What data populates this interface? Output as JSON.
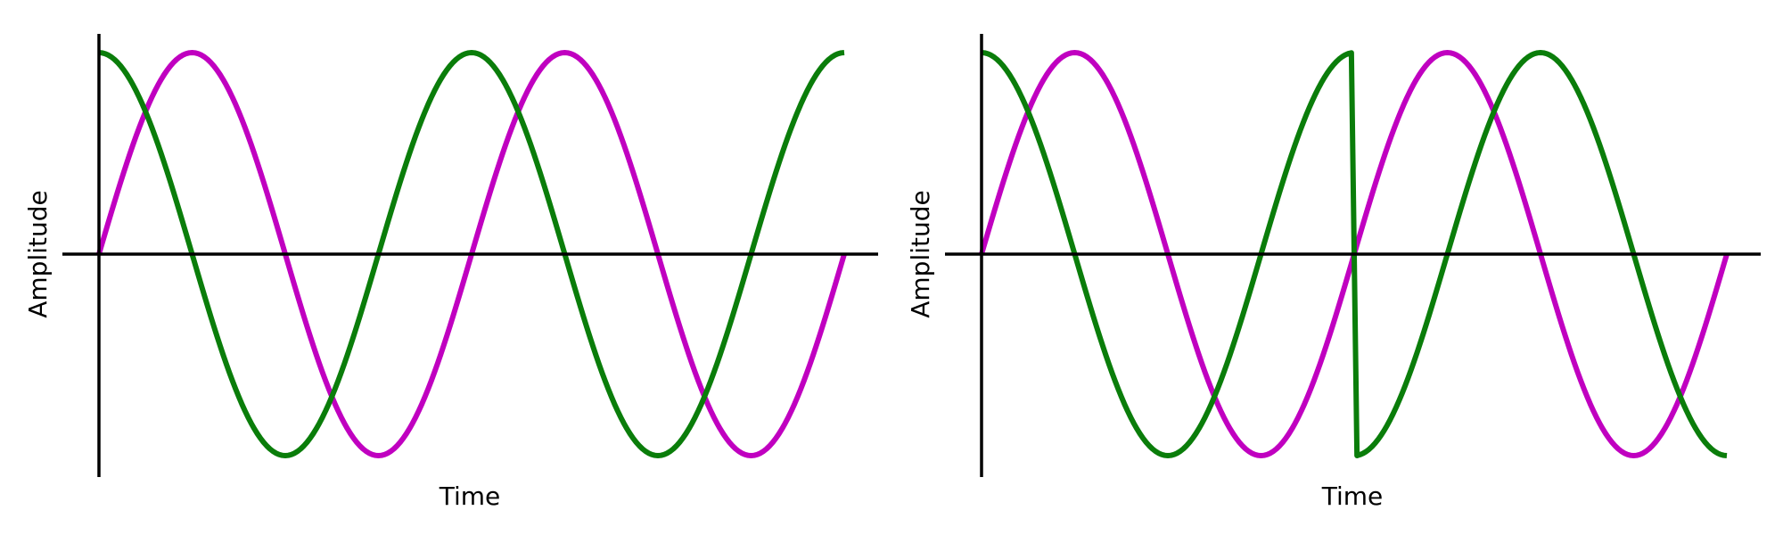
{
  "colors": {
    "axis": "#000000",
    "sine": "#c000c0",
    "cosine": "#0a7d0a"
  },
  "chart_data": [
    {
      "type": "line",
      "title": "",
      "xlabel": "Time",
      "ylabel": "Amplitude",
      "xlim": [
        0,
        8.4
      ],
      "ylim": [
        -1.1,
        1.1
      ],
      "grid": false,
      "legend": "none",
      "axes_style": "x-axis at zero amplitude, y-axis at time zero, no tick labels",
      "series": [
        {
          "color": "#c000c0",
          "shape": "sine",
          "amplitude": 1,
          "period": 4,
          "phase_shift": 0,
          "x": [
            0,
            1,
            2,
            3,
            4,
            5,
            6,
            7,
            8
          ],
          "y": [
            0,
            1,
            0,
            -1,
            0,
            1,
            0,
            -1,
            -0.09
          ]
        },
        {
          "color": "#0a7d0a",
          "shape": "cosine",
          "amplitude": 1,
          "period": 4,
          "phase_shift": 0,
          "x": [
            0,
            1,
            2,
            3,
            4,
            5,
            6,
            7,
            8
          ],
          "y": [
            1,
            0,
            -1,
            0,
            1,
            0,
            -1,
            0,
            1
          ]
        }
      ]
    },
    {
      "type": "line",
      "title": "",
      "xlabel": "Time",
      "ylabel": "Amplitude",
      "xlim": [
        0,
        8.4
      ],
      "ylim": [
        -1.1,
        1.1
      ],
      "grid": false,
      "legend": "none",
      "axes_style": "x-axis at zero amplitude, y-axis at time zero, no tick labels",
      "series": [
        {
          "color": "#c000c0",
          "shape": "sine",
          "amplitude": 1,
          "period": 4,
          "phase_shift": 0,
          "x": [
            0,
            1,
            2,
            3,
            4,
            5,
            6,
            7,
            8
          ],
          "y": [
            0,
            1,
            0,
            -1,
            0,
            1,
            0,
            -1,
            0.09
          ]
        },
        {
          "color": "#0a7d0a",
          "shape": "cosine",
          "amplitude": 1,
          "period": 4,
          "phase_shift": 0,
          "x": [
            0,
            1,
            2,
            3,
            3.97,
            4.03,
            5,
            6,
            7,
            8
          ],
          "y": [
            1,
            0,
            -1,
            0,
            1,
            -1,
            0,
            1,
            0,
            -1
          ],
          "note_values": "phase jump of 180 degrees at x = 4"
        }
      ]
    }
  ]
}
